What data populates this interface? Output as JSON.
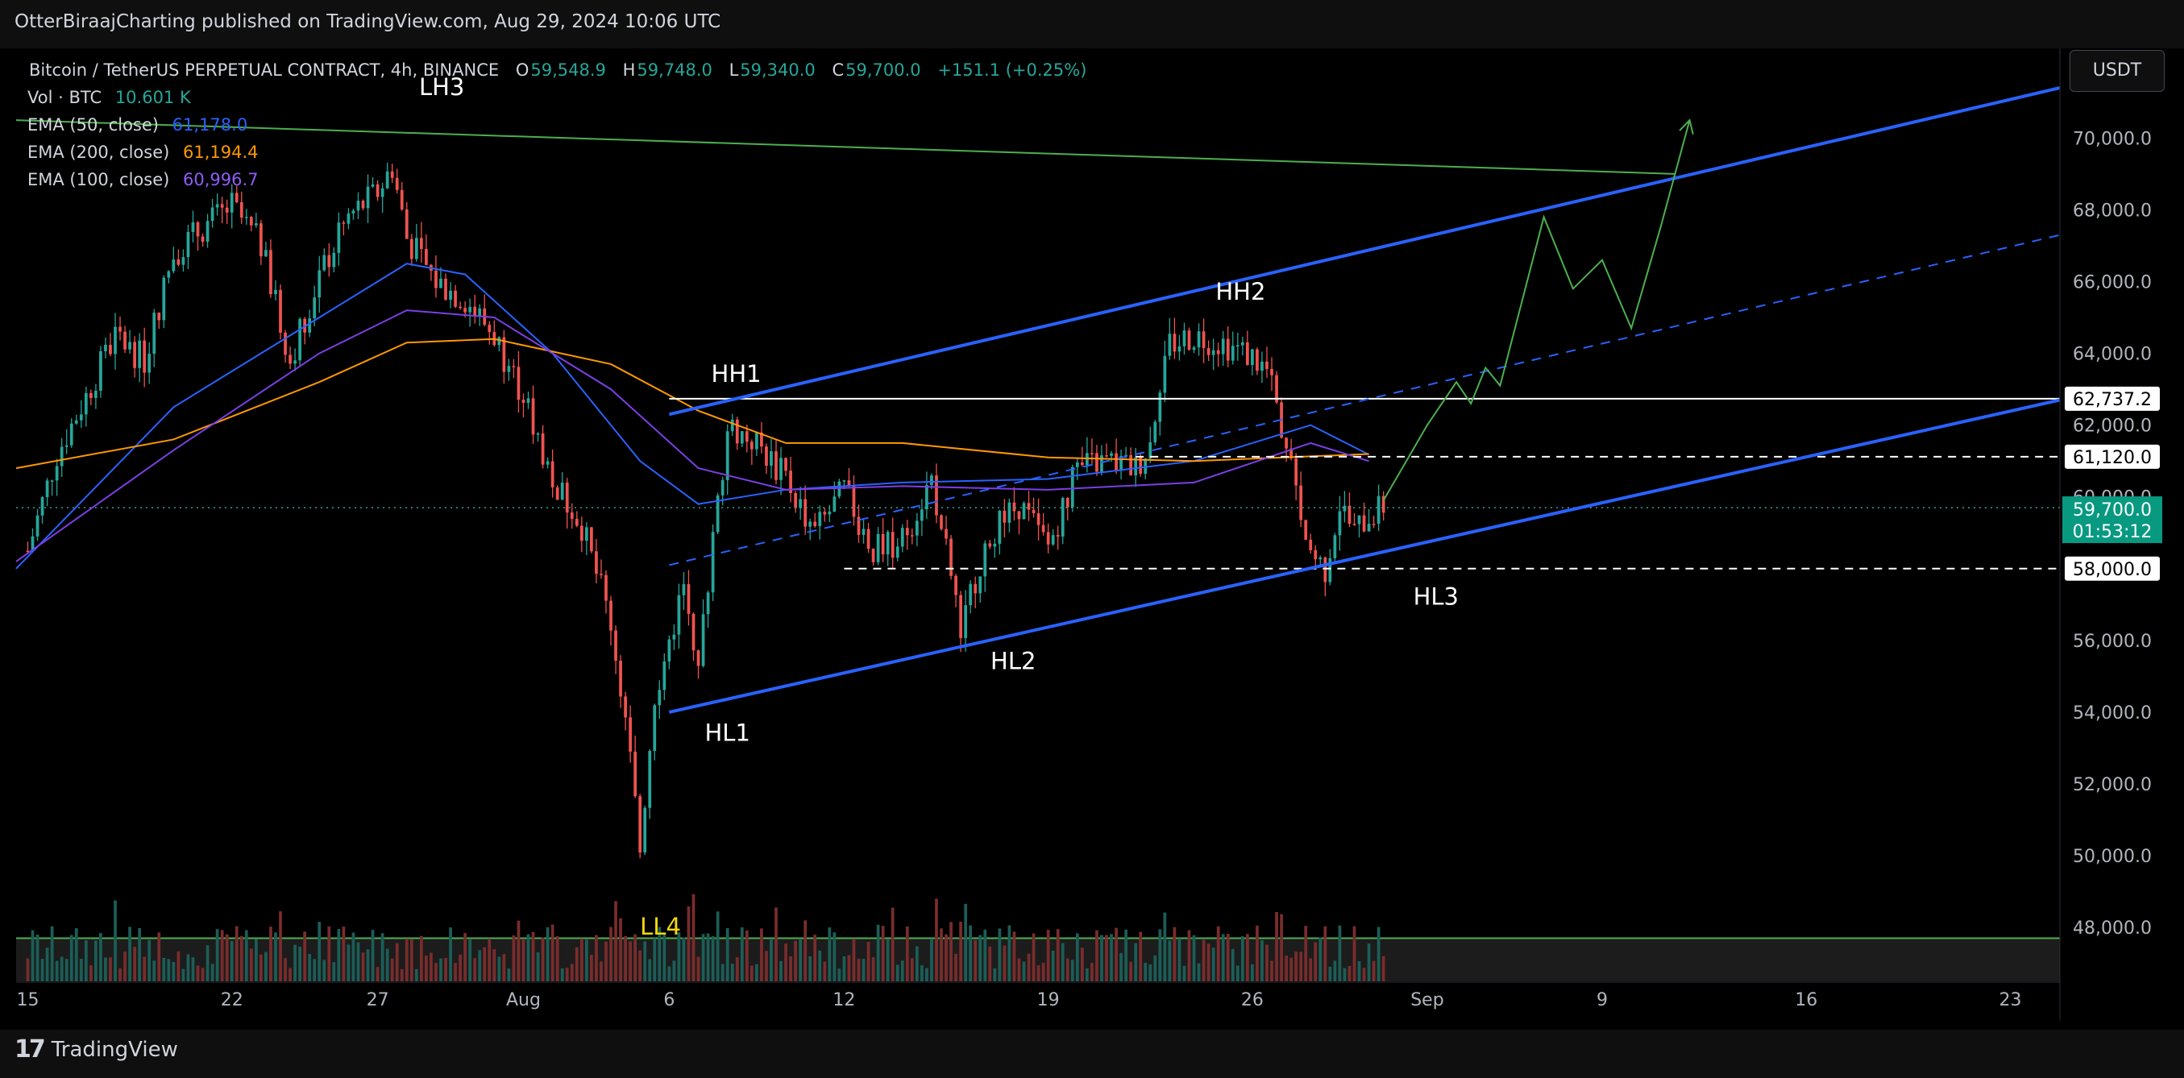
{
  "header": {
    "published": "OtterBiraajCharting published on TradingView.com, Aug 29, 2024 10:06 UTC"
  },
  "legend": {
    "symbol": "Bitcoin / TetherUS PERPETUAL CONTRACT, 4h, BINANCE",
    "ohlc": {
      "o_label": "O",
      "o": "59,548.9",
      "h_label": "H",
      "h": "59,748.0",
      "l_label": "L",
      "l": "59,340.0",
      "c_label": "C",
      "c": "59,700.0",
      "change": "+151.1 (+0.25%)"
    },
    "vol_label": "Vol · BTC",
    "vol_value": "10.601 K",
    "ema50_label": "EMA (50, close)",
    "ema50_value": "61,178.0",
    "ema200_label": "EMA (200, close)",
    "ema200_value": "61,194.4",
    "ema100_label": "EMA (100, close)",
    "ema100_value": "60,996.7"
  },
  "currency_button": "USDT",
  "footer": {
    "brand": "TradingView",
    "logo_glyph": "17"
  },
  "colors": {
    "up": "#26a69a",
    "down": "#ef5350",
    "ema50": "#2962ff",
    "ema200": "#ff9800",
    "ema100": "#7b3fe4",
    "channel": "#2962ff",
    "projection": "#4caf50",
    "price_tag": "#089981"
  },
  "chart_data": {
    "type": "candlestick",
    "title": "Bitcoin / TetherUS PERPETUAL CONTRACT, 4h, BINANCE",
    "ylim": [
      46500,
      72500
    ],
    "y_ticks": [
      "48,000.0",
      "50,000.0",
      "52,000.0",
      "54,000.0",
      "56,000.0",
      "58,000.0",
      "60,000.0",
      "62,000.0",
      "64,000.0",
      "66,000.0",
      "68,000.0",
      "70,000.0"
    ],
    "y_tick_values": [
      48000,
      50000,
      52000,
      54000,
      56000,
      58000,
      60000,
      62000,
      64000,
      66000,
      68000,
      70000
    ],
    "x_ticks": [
      "15",
      "22",
      "27",
      "Aug",
      "6",
      "12",
      "19",
      "26",
      "Sep",
      "9",
      "16",
      "23"
    ],
    "x_tick_days": [
      0,
      7,
      12,
      17,
      22,
      28,
      35,
      42,
      48,
      54,
      61,
      68
    ],
    "xlim_days": [
      -0.4,
      69.7
    ],
    "price_path_days": [
      0,
      1,
      2,
      3,
      4,
      5,
      6,
      7,
      8,
      9,
      10,
      11,
      12,
      12.5,
      13,
      14,
      15,
      16,
      17,
      18,
      19,
      20,
      20.5,
      21,
      21.5,
      22,
      22.5,
      23,
      24,
      25,
      26,
      27,
      28,
      29,
      30,
      31,
      32,
      33,
      34,
      35,
      36,
      37,
      38,
      38.5,
      39,
      40,
      41,
      42,
      42.5,
      43,
      44,
      44.5,
      45,
      45.5,
      46,
      46.5
    ],
    "price_path": [
      58500,
      61200,
      62800,
      64500,
      63800,
      66800,
      67500,
      68100,
      67000,
      63800,
      66200,
      67800,
      68500,
      69200,
      67200,
      66000,
      65500,
      64500,
      62800,
      60500,
      59200,
      56500,
      53800,
      50200,
      54500,
      56000,
      57500,
      55500,
      62000,
      61500,
      60500,
      59000,
      60200,
      58500,
      58800,
      60500,
      56500,
      59000,
      59800,
      58600,
      60800,
      61000,
      60800,
      61500,
      64200,
      64500,
      64300,
      63900,
      63500,
      62000,
      58500,
      58000,
      59800,
      59000,
      59500,
      59700
    ],
    "series": [
      {
        "name": "EMA (50, close)",
        "x": [
          -0.4,
          5,
          10,
          13,
          15,
          18,
          21,
          23,
          26,
          30,
          35,
          40,
          44,
          46
        ],
        "values": [
          58000,
          62500,
          65000,
          66500,
          66200,
          64000,
          61000,
          59800,
          60200,
          60400,
          60500,
          61000,
          62000,
          61178
        ]
      },
      {
        "name": "EMA (200, close)",
        "x": [
          -0.4,
          5,
          10,
          13,
          16,
          20,
          23,
          26,
          30,
          35,
          40,
          46
        ],
        "values": [
          60800,
          61600,
          63200,
          64300,
          64400,
          63700,
          62400,
          61500,
          61500,
          61100,
          61000,
          61194
        ]
      },
      {
        "name": "EMA (100, close)",
        "x": [
          -0.4,
          5,
          10,
          13,
          16,
          20,
          23,
          26,
          30,
          35,
          40,
          44,
          46
        ],
        "values": [
          58200,
          61300,
          64000,
          65200,
          65000,
          63000,
          60800,
          60200,
          60300,
          60200,
          60400,
          61500,
          60997
        ]
      }
    ],
    "horizontal_levels": [
      {
        "price": 62737.2,
        "label": "62,737.2",
        "style": "solid"
      },
      {
        "price": 61120.0,
        "label": "61,120.0",
        "style": "dashed"
      },
      {
        "price": 58000.0,
        "label": "58,000.0",
        "style": "dashed"
      }
    ],
    "current_price": {
      "price": 59700.0,
      "label": "59,700.0",
      "countdown": "01:53:12"
    },
    "channel": {
      "upper": [
        [
          22,
          62300
        ],
        [
          69.7,
          71400
        ]
      ],
      "lower": [
        [
          22,
          54000
        ],
        [
          69.7,
          62700
        ]
      ],
      "middle": [
        [
          22,
          58100
        ],
        [
          69.7,
          67300
        ]
      ]
    },
    "downtrend_line": [
      [
        -0.4,
        70500
      ],
      [
        56.5,
        69000
      ]
    ],
    "projection_path_days": [
      46.5,
      48,
      49,
      49.5,
      50,
      50.5,
      52,
      53,
      54,
      55,
      56,
      57
    ],
    "projection_path": [
      59900,
      62000,
      63200,
      62600,
      63600,
      63100,
      67800,
      65800,
      66600,
      64700,
      67500,
      70500
    ],
    "annotations": [
      {
        "text": "LH3",
        "day": 14.2,
        "price": 71200,
        "color": "#ffffff"
      },
      {
        "text": "HH1",
        "day": 24.3,
        "price": 63200,
        "color": "#ffffff"
      },
      {
        "text": "HH2",
        "day": 41.6,
        "price": 65500,
        "color": "#ffffff"
      },
      {
        "text": "HL1",
        "day": 24.0,
        "price": 53200,
        "color": "#ffffff"
      },
      {
        "text": "HL2",
        "day": 33.8,
        "price": 55200,
        "color": "#ffffff"
      },
      {
        "text": "HL3",
        "day": 48.3,
        "price": 57000,
        "color": "#ffffff"
      },
      {
        "text": "LL4",
        "day": 21.7,
        "price": 47800,
        "color": "#f5d90a"
      }
    ],
    "volume_band_floor": 47700
  }
}
